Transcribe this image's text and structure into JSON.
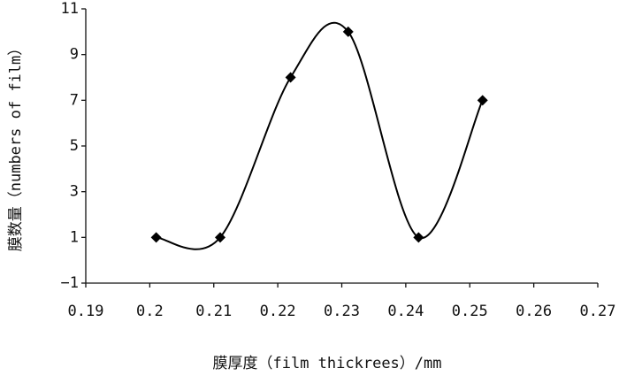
{
  "chart_data": {
    "type": "line",
    "xlabel": "膜厚度（film thickrees）/mm",
    "ylabel": "膜数量（numbers of film）",
    "x": [
      0.201,
      0.211,
      0.222,
      0.231,
      0.242,
      0.252
    ],
    "series": [
      {
        "name": "numbers of film",
        "color": "#000000",
        "values": [
          1,
          1,
          8,
          10,
          1,
          7
        ]
      }
    ],
    "xlim": [
      0.19,
      0.27
    ],
    "xticks": [
      0.19,
      0.2,
      0.21,
      0.22,
      0.23,
      0.24,
      0.25,
      0.26,
      0.27
    ],
    "ylim": [
      -1,
      11
    ],
    "yticks": [
      {
        "value": -1,
        "label": "−1"
      },
      1,
      3,
      5,
      7,
      9,
      11
    ],
    "smooth": true,
    "marker": "diamond"
  }
}
